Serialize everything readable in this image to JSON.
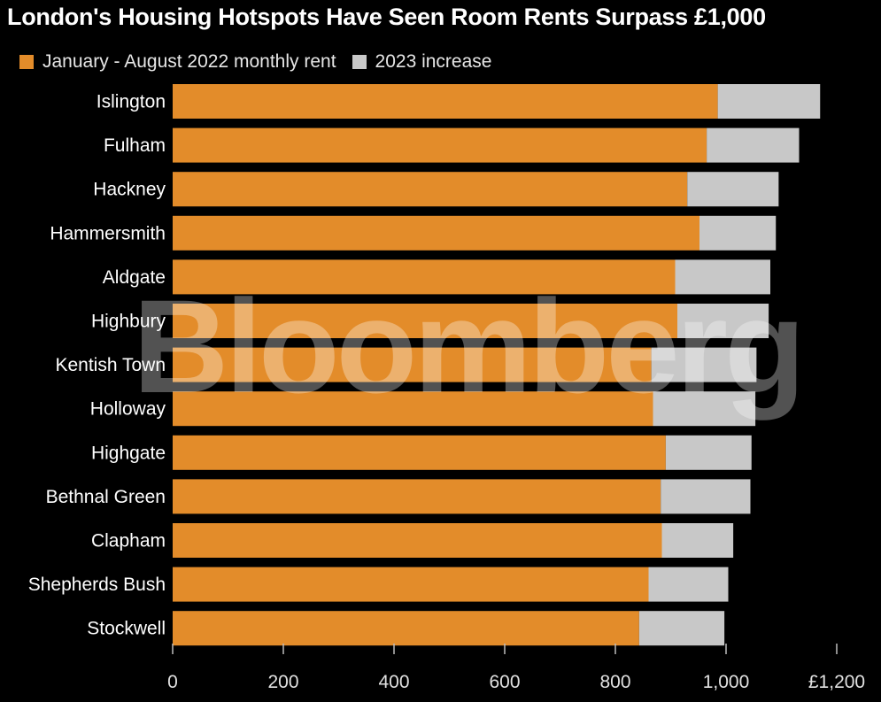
{
  "title": "London's Housing Hotspots Have Seen Room Rents Surpass £1,000",
  "watermark": "Bloomberg",
  "colors": {
    "background": "#000000",
    "base_series": "#e38c2a",
    "increase_series": "#c8c8c8",
    "text": "#ffffff",
    "axis_text": "#e0e0e0"
  },
  "chart_data": {
    "type": "bar",
    "orientation": "horizontal",
    "stacked": true,
    "categories": [
      "Islington",
      "Fulham",
      "Hackney",
      "Hammersmith",
      "Aldgate",
      "Highbury",
      "Kentish Town",
      "Holloway",
      "Highgate",
      "Bethnal Green",
      "Clapham",
      "Shepherds Bush",
      "Stockwell"
    ],
    "series": [
      {
        "name": "January - August 2022 monthly rent",
        "color": "#e38c2a",
        "values": [
          985,
          965,
          930,
          952,
          908,
          912,
          865,
          868,
          891,
          882,
          884,
          860,
          843
        ]
      },
      {
        "name": "2023 increase",
        "color": "#c8c8c8",
        "values": [
          185,
          167,
          165,
          138,
          172,
          165,
          190,
          185,
          155,
          162,
          129,
          144,
          154
        ]
      }
    ],
    "x_ticks": [
      "0",
      "200",
      "400",
      "600",
      "800",
      "1,000",
      "£1,200"
    ],
    "x_tick_values": [
      0,
      200,
      400,
      600,
      800,
      1000,
      1200
    ],
    "xlim": [
      0,
      1200
    ],
    "legend_position": "top-left",
    "grid": false
  }
}
